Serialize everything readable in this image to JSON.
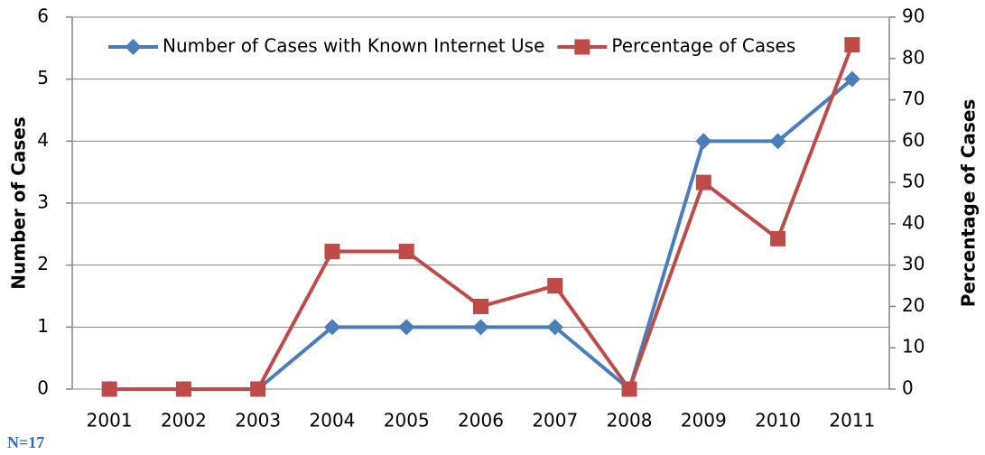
{
  "chart_data": {
    "type": "line",
    "categories": [
      "2001",
      "2002",
      "2003",
      "2004",
      "2005",
      "2006",
      "2007",
      "2008",
      "2009",
      "2010",
      "2011"
    ],
    "series": [
      {
        "name": "Number of Cases with Known Internet Use",
        "color": "#4a7ebb",
        "marker": "diamond",
        "values": [
          0,
          0,
          0,
          1,
          1,
          1,
          1,
          0,
          4,
          4,
          5
        ]
      },
      {
        "name": "Percentage of Cases",
        "color": "#be4b48",
        "marker": "square",
        "axis": "y2",
        "values": [
          0,
          0,
          0,
          33.3,
          33.3,
          20,
          25,
          0,
          50,
          36.4,
          83.3
        ]
      }
    ],
    "ylabel": "Number of Cases",
    "y2label": "Percentage of Cases",
    "ylim": [
      0,
      6
    ],
    "yticks": [
      0,
      1,
      2,
      3,
      4,
      5,
      6
    ],
    "y2lim": [
      0,
      90
    ],
    "y2ticks": [
      0,
      10,
      20,
      30,
      40,
      50,
      60,
      70,
      80,
      90
    ],
    "grid": true,
    "legend": "top",
    "note": "N=17"
  }
}
